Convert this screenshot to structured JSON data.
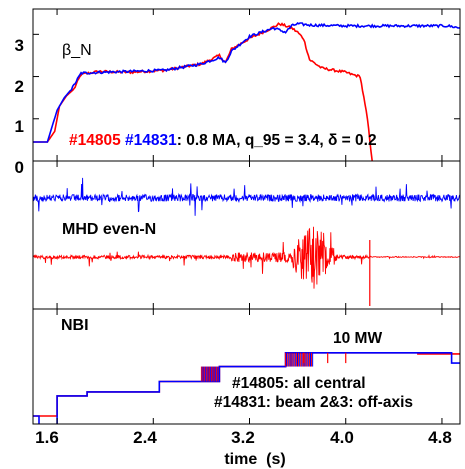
{
  "chart_data": {
    "type": "line",
    "xlabel": "time  (s)",
    "xlim": [
      1.4,
      4.95
    ],
    "x_ticks": [
      "1.6",
      "2.4",
      "3.2",
      "4.0",
      "4.8"
    ],
    "x_tick_values": [
      1.6,
      2.4,
      3.2,
      4.0,
      4.8
    ],
    "colors": {
      "shot_14805": "#ff0000",
      "shot_14831": "#0000ff"
    },
    "panels": [
      {
        "id": "beta",
        "label": "β_N",
        "ylim": [
          0,
          3.6
        ],
        "y_ticks": [
          "3",
          "2",
          "1",
          "0"
        ],
        "y_tick_values": [
          3,
          2,
          1,
          0
        ],
        "annotation": {
          "shot_red": "#14805",
          "shot_blue": "#14831",
          "rest": ": 0.8 MA, q_95 = 3.4, δ = 0.2"
        },
        "series": [
          {
            "name": "#14805",
            "color": "#ff0000",
            "x": [
              1.4,
              1.52,
              1.58,
              1.62,
              1.68,
              1.74,
              1.8,
              1.95,
              2.2,
              2.5,
              2.8,
              2.95,
              3.0,
              3.05,
              3.2,
              3.35,
              3.45,
              3.55,
              3.6,
              3.65,
              3.7,
              3.8,
              3.9,
              4.0,
              4.05,
              4.12,
              4.18,
              4.22
            ],
            "y": [
              0.45,
              0.45,
              0.7,
              1.3,
              1.55,
              1.7,
              2.05,
              2.12,
              2.1,
              2.15,
              2.3,
              2.5,
              2.33,
              2.65,
              2.9,
              3.1,
              3.25,
              3.15,
              3.05,
              2.9,
              2.4,
              2.2,
              2.15,
              2.1,
              2.05,
              2.0,
              1.0,
              0.0
            ]
          },
          {
            "name": "#14831",
            "color": "#0000ff",
            "x": [
              1.4,
              1.52,
              1.6,
              1.66,
              1.72,
              1.8,
              1.95,
              2.2,
              2.5,
              2.8,
              2.95,
              3.0,
              3.05,
              3.2,
              3.4,
              3.5,
              3.55,
              3.6,
              3.7,
              4.0,
              4.3,
              4.6,
              4.85,
              4.95
            ],
            "y": [
              0.45,
              0.45,
              1.2,
              1.5,
              1.7,
              2.08,
              2.1,
              2.12,
              2.15,
              2.3,
              2.45,
              2.33,
              2.6,
              2.95,
              3.15,
              3.05,
              3.2,
              3.25,
              3.22,
              3.2,
              3.2,
              3.2,
              3.2,
              3.15
            ]
          }
        ]
      },
      {
        "id": "mhd",
        "label": "MHD even-N"
      },
      {
        "id": "nbi",
        "label": "NBI",
        "level_label": "10 MW",
        "notes": [
          {
            "text": "#14805: all central",
            "color": "#ff0000"
          },
          {
            "text": "#14831: beam 2&3: off-axis",
            "color": "#0000ff"
          }
        ],
        "series": [
          {
            "name": "#14805",
            "color": "#ff0000",
            "x": [
              1.4,
              1.6,
              1.6,
              1.85,
              1.85,
              2.45,
              2.45,
              2.95,
              2.95,
              3.5,
              3.5,
              4.6,
              4.6,
              4.95
            ],
            "y": [
              0,
              0,
              1.75,
              1.75,
              2.1,
              2.1,
              3.0,
              3.0,
              4.3,
              4.3,
              5.5,
              5.5,
              5.4,
              5.4
            ]
          },
          {
            "name": "#14831",
            "color": "#0000ff",
            "x": [
              1.4,
              1.45,
              1.45,
              1.55,
              1.55,
              1.6,
              1.6,
              1.85,
              1.85,
              2.45,
              2.45,
              2.95,
              2.95,
              3.5,
              3.5,
              4.88,
              4.88,
              4.95
            ],
            "y": [
              0,
              0,
              -1.5,
              -1.5,
              -0.8,
              -0.8,
              1.75,
              1.75,
              2.1,
              2.1,
              3.0,
              3.0,
              4.3,
              4.3,
              5.5,
              5.5,
              4.6,
              4.6
            ]
          }
        ]
      }
    ]
  }
}
